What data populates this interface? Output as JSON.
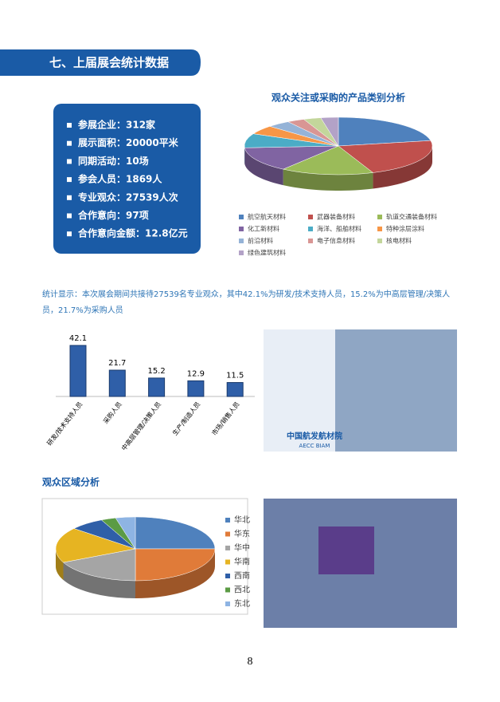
{
  "section_title": "七、上届展会统计数据",
  "stats": [
    "参展企业：312家",
    "展示面积：20000平米",
    "同期活动：10场",
    "参会人员：1869人",
    "专业观众：27539人次",
    "合作意向：97项",
    "合作意向金额：12.8亿元"
  ],
  "note": "统计显示：本次展会期间共接待27539名专业观众，其中42.1%为研发/技术支持人员，15.2%为中高层管理/决策人员，21.7%为采购人员",
  "region_heading": "观众区域分析",
  "photo_caption": {
    "cn": "中国航发航材院",
    "en": "AECC BIAM"
  },
  "page_number": "8",
  "chart_data": [
    {
      "type": "pie",
      "title": "观众关注或采购的产品类别分析",
      "categories": [
        "航空航天材料",
        "武器装备材料",
        "轨道交通装备材料",
        "化工新材料",
        "海洋、船舶材料",
        "特种涂层涂料",
        "前沿材料",
        "电子信息材料",
        "核电材料",
        "绿色建筑材料"
      ],
      "values": [
        22,
        22,
        16,
        14,
        8,
        5,
        4,
        3,
        3,
        3
      ],
      "colors": [
        "#4f81bd",
        "#c0504d",
        "#9bbb59",
        "#8064a2",
        "#4bacc6",
        "#f79646",
        "#95b3d7",
        "#d99694",
        "#c3d69b",
        "#b3a2c7"
      ],
      "legend": "bottom"
    },
    {
      "type": "bar",
      "categories": [
        "研发/技术支持人员",
        "采购人员",
        "中高层管理/决策人员",
        "生产/制造人员",
        "市场/销售人员"
      ],
      "values": [
        42.1,
        21.7,
        15.2,
        12.9,
        11.5
      ],
      "color": "#2f5fa8"
    },
    {
      "type": "pie",
      "categories": [
        "华北",
        "华东",
        "华中",
        "华南",
        "西南",
        "西北",
        "东北"
      ],
      "values": [
        25,
        25,
        18,
        18,
        7,
        3,
        4
      ],
      "colors": [
        "#4f81bd",
        "#e07b39",
        "#a5a5a5",
        "#e6b422",
        "#2f5fa8",
        "#5b9b44",
        "#8eb4e3"
      ],
      "legend": "right"
    }
  ]
}
